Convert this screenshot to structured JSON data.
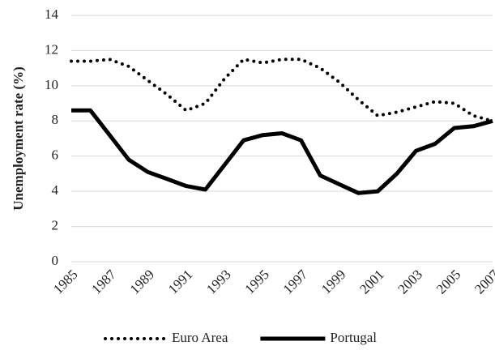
{
  "chart_data": {
    "type": "line",
    "y_label": "Unemployment rate (%)",
    "x": [
      1985,
      1986,
      1987,
      1988,
      1989,
      1990,
      1991,
      1992,
      1993,
      1994,
      1995,
      1996,
      1997,
      1998,
      1999,
      2000,
      2001,
      2002,
      2003,
      2004,
      2005,
      2006,
      2007
    ],
    "xlim": [
      1985,
      2007
    ],
    "xticks": [
      1985,
      1987,
      1989,
      1991,
      1993,
      1995,
      1997,
      1999,
      2001,
      2003,
      2005,
      2007
    ],
    "ylim": [
      0,
      14
    ],
    "yticks": [
      0,
      2,
      4,
      6,
      8,
      10,
      12,
      14
    ],
    "grid": true,
    "legend": "bottom",
    "series": [
      {
        "name": "Euro Area",
        "color": "#000000",
        "dash": "dotted",
        "values": [
          11.4,
          11.4,
          11.5,
          11.1,
          10.3,
          9.5,
          8.6,
          9.0,
          10.4,
          11.5,
          11.3,
          11.5,
          11.5,
          11.0,
          10.2,
          9.2,
          8.3,
          8.5,
          8.8,
          9.1,
          9.0,
          8.3,
          8.0
        ]
      },
      {
        "name": "Portugal",
        "color": "#000000",
        "dash": "solid",
        "values": [
          8.6,
          8.6,
          7.2,
          5.8,
          5.1,
          4.7,
          4.3,
          4.1,
          5.5,
          6.9,
          7.2,
          7.3,
          6.9,
          4.9,
          4.4,
          3.9,
          4.0,
          5.0,
          6.3,
          6.7,
          7.6,
          7.7,
          8.0
        ]
      }
    ]
  }
}
